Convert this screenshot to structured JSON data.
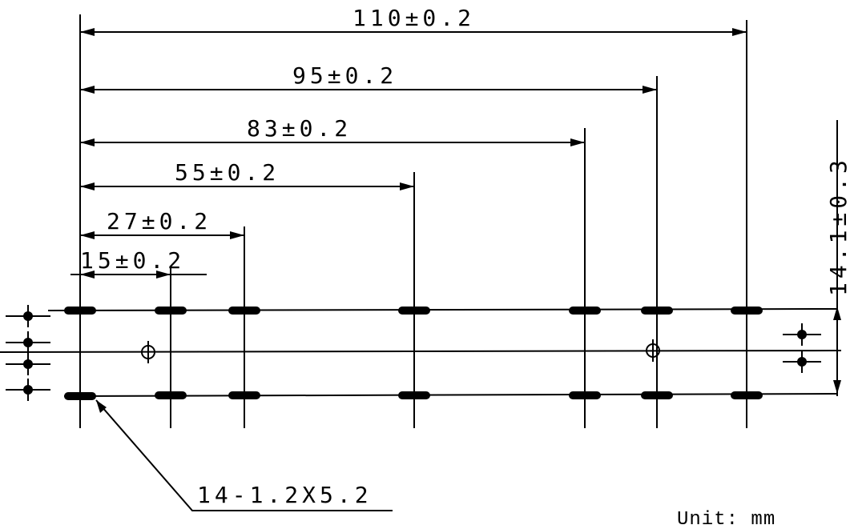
{
  "dimensions": [
    {
      "label": "110±0.2"
    },
    {
      "label": "95±0.2"
    },
    {
      "label": "83±0.2"
    },
    {
      "label": "55±0.2"
    },
    {
      "label": "27±0.2"
    },
    {
      "label": "15±0.2"
    }
  ],
  "height_dimension": {
    "label": "14.1±0.3"
  },
  "slot_note": {
    "label": "14-1.2X5.2"
  },
  "unit_note": {
    "label": "Unit: mm"
  }
}
